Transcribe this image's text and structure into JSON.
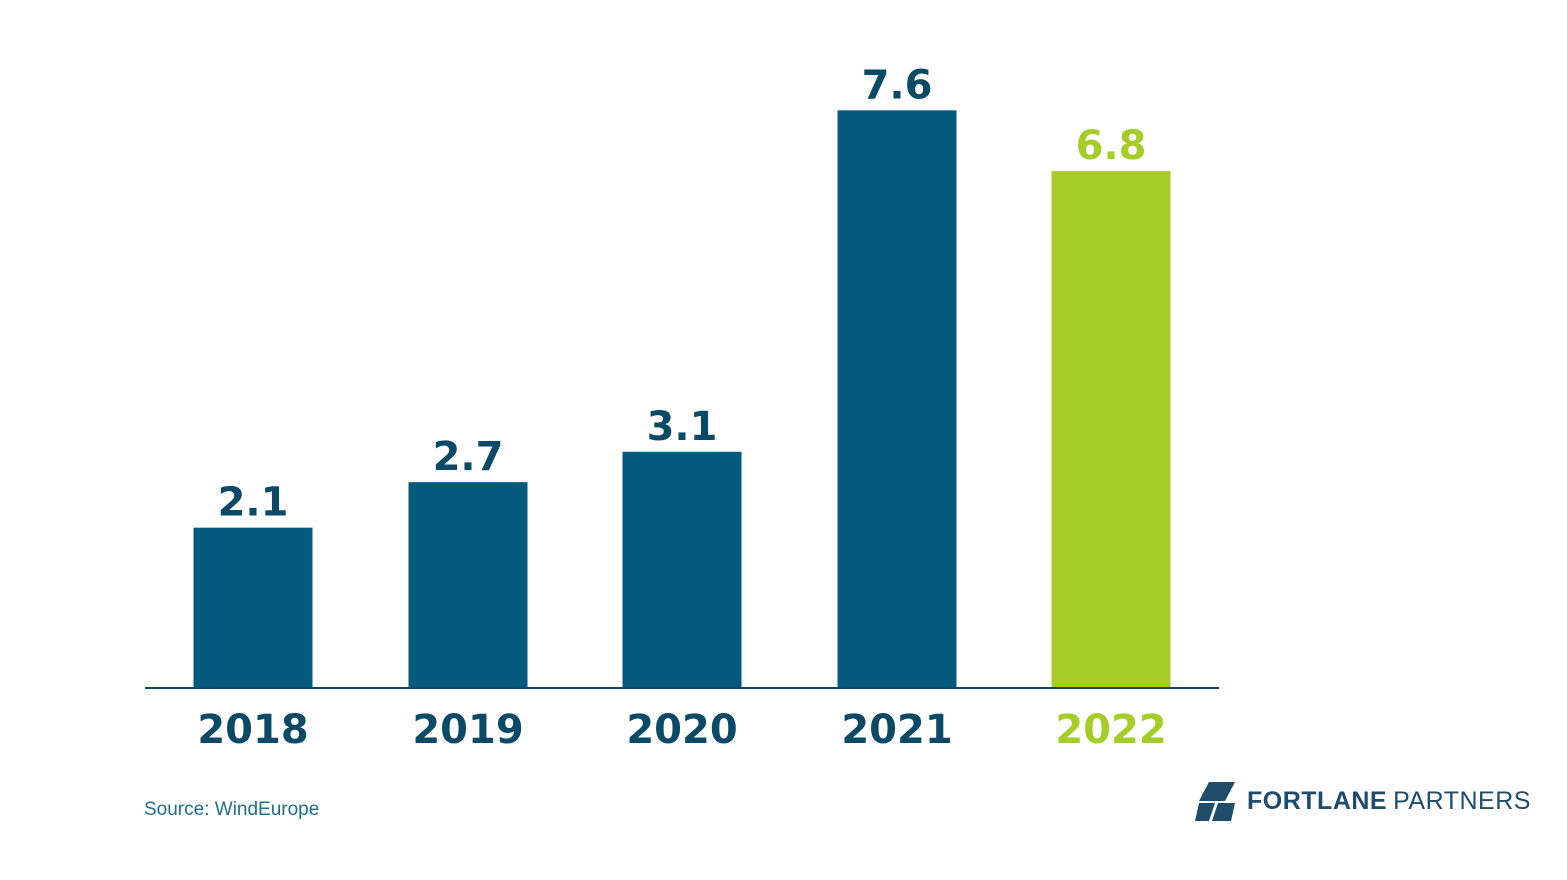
{
  "chart_data": {
    "type": "bar",
    "categories": [
      "2018",
      "2019",
      "2020",
      "2021",
      "2022"
    ],
    "values": [
      2.1,
      2.7,
      3.1,
      7.6,
      6.8
    ],
    "value_labels": [
      "2.1",
      "2.7",
      "3.1",
      "7.6",
      "6.8"
    ],
    "highlight_index": 4,
    "title": "",
    "xlabel": "",
    "ylabel": "",
    "ylim": [
      0,
      8
    ],
    "colors": {
      "default": "#035a7d",
      "highlight": "#a6cc28",
      "default_label": "#0b4a66",
      "highlight_label": "#a6cc28",
      "axis": "#0b4a66"
    }
  },
  "footer": {
    "source": "Source: WindEurope"
  },
  "logo": {
    "word1": "FORTLANE",
    "word2": "PARTNERS",
    "icon": "fortlane-cube-icon",
    "color": "#1e4c6a"
  }
}
